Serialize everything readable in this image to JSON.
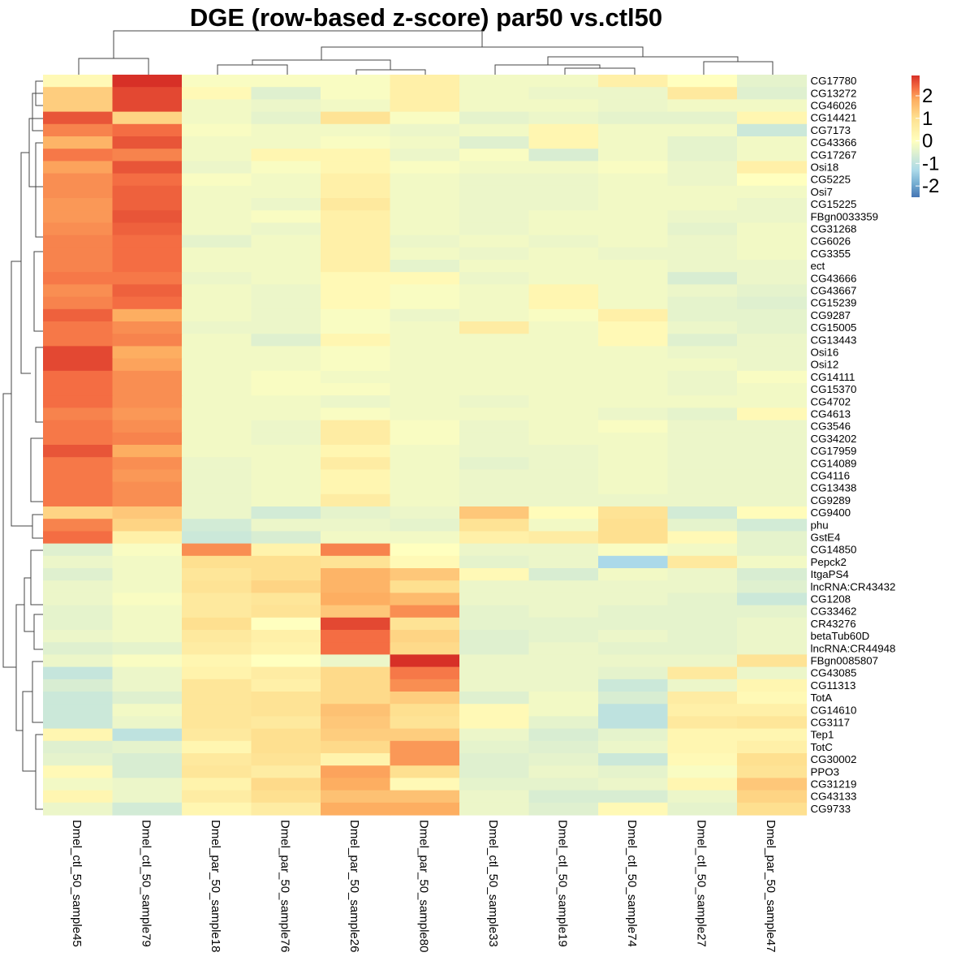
{
  "chart_data": {
    "type": "heatmap",
    "title": "DGE (row-based z-score) par50 vs.ctl50",
    "columns": [
      "Dmel_ctl_50_sample45",
      "Dmel_ctl_50_sample79",
      "Dmel_par_50_sample18",
      "Dmel_par_50_sample76",
      "Dmel_par_50_sample26",
      "Dmel_par_50_sample80",
      "Dmel_ctl_50_sample33",
      "Dmel_ctl_50_sample19",
      "Dmel_ctl_50_sample74",
      "Dmel_ctl_50_sample27",
      "Dmel_par_50_sample47"
    ],
    "rows": [
      "CG17780",
      "CG13272",
      "CG46026",
      "CG14421",
      "CG7173",
      "CG43366",
      "CG17267",
      "Osi18",
      "CG5225",
      "Osi7",
      "CG15225",
      "FBgn0033359",
      "CG31268",
      "CG6026",
      "CG3355",
      "ect",
      "CG43666",
      "CG43667",
      "CG15239",
      "CG9287",
      "CG15005",
      "CG13443",
      "Osi16",
      "Osi12",
      "CG14111",
      "CG15370",
      "CG4702",
      "CG4613",
      "CG3546",
      "CG34202",
      "CG17959",
      "CG14089",
      "CG4116",
      "CG13438",
      "CG9289",
      "CG9400",
      "phu",
      "GstE4",
      "CG14850",
      "Pepck2",
      "ItgaPS4",
      "lncRNA:CR43432",
      "CG1208",
      "CG33462",
      "CR43276",
      "betaTub60D",
      "lncRNA:CR44948",
      "FBgn0085807",
      "CG43085",
      "CG11313",
      "TotA",
      "CG14610",
      "CG3117",
      "Tep1",
      "TotC",
      "CG30002",
      "PPO3",
      "CG31219",
      "CG43133",
      "CG9733"
    ],
    "values": [
      [
        0.2,
        2.9,
        -0.1,
        -0.1,
        -0.1,
        0.5,
        -0.2,
        -0.2,
        0.5,
        0,
        -0.4
      ],
      [
        1.3,
        2.7,
        0.2,
        -0.5,
        -0.1,
        0.5,
        -0.2,
        -0.3,
        -0.3,
        0.7,
        -0.5
      ],
      [
        1.3,
        2.7,
        -0.2,
        -0.3,
        -0.2,
        0.5,
        -0.2,
        -0.2,
        -0.3,
        -0.2,
        -0.2
      ],
      [
        2.6,
        1.2,
        -0.2,
        -0.4,
        0.9,
        -0.1,
        -0.4,
        -0.3,
        -0.4,
        -0.4,
        0.3
      ],
      [
        2.2,
        2.4,
        -0.1,
        -0.2,
        -0.2,
        -0.3,
        -0.2,
        0.3,
        -0.2,
        -0.2,
        -0.8
      ],
      [
        1.7,
        2.6,
        -0.2,
        -0.2,
        -0.1,
        -0.2,
        -0.5,
        0.3,
        -0.2,
        -0.4,
        -0.2
      ],
      [
        2.3,
        2.2,
        -0.2,
        0.3,
        0.3,
        -0.3,
        -0.1,
        -0.6,
        -0.2,
        -0.4,
        -0.2
      ],
      [
        1.9,
        2.6,
        -0.3,
        -0.1,
        0.3,
        -0.1,
        -0.2,
        -0.2,
        -0.1,
        -0.3,
        0.5
      ],
      [
        2.1,
        2.4,
        -0.1,
        -0.2,
        0.5,
        -0.2,
        -0.3,
        -0.3,
        -0.2,
        -0.3,
        0
      ],
      [
        2.1,
        2.5,
        -0.2,
        -0.2,
        0.5,
        -0.2,
        -0.3,
        -0.3,
        -0.2,
        -0.2,
        -0.2
      ],
      [
        2.0,
        2.5,
        -0.2,
        -0.3,
        0.7,
        -0.2,
        -0.3,
        -0.3,
        -0.2,
        -0.2,
        -0.3
      ],
      [
        2.0,
        2.6,
        -0.2,
        -0.1,
        0.5,
        -0.2,
        -0.3,
        -0.2,
        -0.2,
        -0.3,
        -0.3
      ],
      [
        2.1,
        2.5,
        -0.2,
        -0.3,
        0.5,
        -0.2,
        -0.3,
        -0.2,
        -0.2,
        -0.4,
        -0.2
      ],
      [
        2.2,
        2.4,
        -0.4,
        -0.2,
        0.5,
        -0.3,
        -0.2,
        -0.3,
        -0.2,
        -0.3,
        -0.2
      ],
      [
        2.2,
        2.4,
        -0.2,
        -0.2,
        0.5,
        -0.2,
        -0.3,
        -0.2,
        -0.3,
        -0.3,
        -0.2
      ],
      [
        2.2,
        2.4,
        -0.2,
        -0.2,
        0.5,
        -0.4,
        -0.2,
        -0.2,
        -0.2,
        -0.3,
        -0.3
      ],
      [
        2.3,
        2.3,
        -0.3,
        -0.2,
        0.2,
        0.2,
        -0.3,
        -0.2,
        -0.2,
        -0.6,
        -0.3
      ],
      [
        2.1,
        2.5,
        -0.2,
        -0.3,
        0.2,
        -0.1,
        -0.2,
        0.3,
        -0.2,
        -0.3,
        -0.4
      ],
      [
        2.2,
        2.4,
        -0.2,
        -0.3,
        0.2,
        -0.1,
        -0.2,
        0.3,
        -0.2,
        -0.4,
        -0.5
      ],
      [
        2.5,
        1.8,
        -0.2,
        -0.3,
        -0.1,
        -0.3,
        -0.2,
        -0.1,
        0.5,
        -0.4,
        -0.4
      ],
      [
        2.3,
        2.1,
        -0.3,
        -0.3,
        -0.1,
        -0.2,
        0.6,
        -0.2,
        0.2,
        -0.3,
        -0.4
      ],
      [
        2.3,
        2.2,
        -0.2,
        -0.5,
        0.3,
        -0.2,
        -0.2,
        -0.2,
        0.2,
        -0.5,
        -0.3
      ],
      [
        2.7,
        1.8,
        -0.2,
        -0.2,
        -0.1,
        -0.2,
        -0.2,
        -0.2,
        -0.2,
        -0.3,
        -0.3
      ],
      [
        2.7,
        1.9,
        -0.2,
        -0.2,
        -0.1,
        -0.2,
        -0.2,
        -0.2,
        -0.2,
        -0.2,
        -0.3
      ],
      [
        2.4,
        2.1,
        -0.2,
        -0.1,
        -0.2,
        -0.2,
        -0.2,
        -0.2,
        -0.2,
        -0.3,
        -0.1
      ],
      [
        2.4,
        2.1,
        -0.2,
        -0.1,
        -0.1,
        -0.2,
        -0.2,
        -0.2,
        -0.2,
        -0.3,
        -0.2
      ],
      [
        2.4,
        2.1,
        -0.2,
        -0.2,
        -0.3,
        -0.2,
        -0.3,
        -0.2,
        -0.2,
        -0.2,
        -0.2
      ],
      [
        2.2,
        2.0,
        -0.2,
        -0.2,
        -0.1,
        -0.2,
        -0.2,
        -0.2,
        -0.3,
        -0.4,
        0.2
      ],
      [
        2.3,
        2.1,
        -0.2,
        -0.3,
        0.6,
        -0.1,
        -0.3,
        -0.2,
        -0.1,
        -0.3,
        -0.3
      ],
      [
        2.3,
        2.2,
        -0.2,
        -0.3,
        0.6,
        -0.1,
        -0.3,
        -0.2,
        -0.2,
        -0.3,
        -0.3
      ],
      [
        2.6,
        1.8,
        -0.2,
        -0.2,
        0.3,
        -0.2,
        -0.3,
        -0.3,
        -0.2,
        -0.3,
        -0.3
      ],
      [
        2.3,
        2.1,
        -0.3,
        -0.2,
        0.6,
        -0.2,
        -0.4,
        -0.3,
        -0.2,
        -0.3,
        -0.3
      ],
      [
        2.3,
        2.0,
        -0.3,
        -0.2,
        0.3,
        -0.2,
        -0.3,
        -0.3,
        -0.2,
        -0.3,
        -0.3
      ],
      [
        2.3,
        2.1,
        -0.3,
        -0.2,
        0.3,
        -0.2,
        -0.3,
        -0.3,
        -0.2,
        -0.3,
        -0.3
      ],
      [
        2.3,
        2.1,
        -0.3,
        -0.2,
        0.6,
        -0.2,
        -0.3,
        -0.3,
        -0.3,
        -0.3,
        -0.3
      ],
      [
        1.2,
        1.4,
        -0.3,
        -0.7,
        -0.4,
        -0.3,
        1.4,
        0.1,
        0.9,
        -0.7,
        0.1
      ],
      [
        2.2,
        1.2,
        -0.7,
        -0.3,
        -0.3,
        -0.4,
        0.9,
        -0.2,
        1.0,
        -0.4,
        -0.7
      ],
      [
        2.4,
        0.5,
        -0.8,
        -0.6,
        -0.2,
        -0.2,
        0.5,
        0.6,
        1.0,
        0.2,
        -0.4
      ],
      [
        -0.5,
        -0.1,
        2.1,
        0.4,
        2.2,
        0,
        -0.3,
        -0.3,
        -0.1,
        -0.2,
        -0.4
      ],
      [
        -0.3,
        -0.2,
        1.0,
        1.0,
        0.9,
        0.2,
        -0.4,
        -0.3,
        -1.3,
        0.7,
        -0.2
      ],
      [
        -0.5,
        -0.2,
        0.8,
        1.0,
        1.7,
        1.4,
        0.2,
        -0.6,
        -0.2,
        -0.3,
        -0.6
      ],
      [
        -0.3,
        -0.2,
        0.9,
        1.2,
        1.7,
        1.0,
        -0.3,
        -0.3,
        -0.3,
        -0.3,
        -0.5
      ],
      [
        -0.3,
        -0.1,
        0.7,
        0.8,
        1.8,
        1.6,
        -0.3,
        -0.3,
        -0.3,
        -0.4,
        -0.8
      ],
      [
        -0.4,
        -0.2,
        0.7,
        0.9,
        1.4,
        2.1,
        -0.4,
        -0.3,
        -0.4,
        -0.4,
        -0.4
      ],
      [
        -0.4,
        -0.2,
        1.0,
        0,
        2.7,
        0.9,
        -0.4,
        -0.4,
        -0.4,
        -0.4,
        -0.3
      ],
      [
        -0.3,
        -0.2,
        0.7,
        0.5,
        2.4,
        1.2,
        -0.5,
        -0.4,
        -0.3,
        -0.4,
        -0.3
      ],
      [
        -0.5,
        -0.4,
        0.6,
        0.4,
        2.4,
        1.1,
        -0.5,
        -0.3,
        -0.4,
        -0.4,
        -0.3
      ],
      [
        -0.3,
        -0.1,
        0.3,
        0,
        -0.3,
        2.9,
        -0.3,
        -0.3,
        -0.3,
        -0.3,
        0.9
      ],
      [
        -0.9,
        -0.3,
        0.4,
        0.6,
        1.1,
        2.3,
        -0.3,
        -0.3,
        -0.4,
        0.7,
        -0.3
      ],
      [
        -0.6,
        -0.3,
        0.8,
        0.5,
        1.1,
        2.1,
        -0.3,
        -0.3,
        -0.8,
        -0.3,
        0.3
      ],
      [
        -0.8,
        -0.5,
        0.8,
        0.9,
        1.1,
        1.3,
        -0.5,
        -0.2,
        -0.6,
        0.6,
        0.2
      ],
      [
        -0.8,
        -0.2,
        0.8,
        0.9,
        1.5,
        1.0,
        0.2,
        -0.2,
        -1.0,
        0.5,
        0.5
      ],
      [
        -0.8,
        -0.3,
        0.8,
        0.7,
        1.4,
        0.9,
        0.2,
        -0.4,
        -1.0,
        0.7,
        0.8
      ],
      [
        0.3,
        -1.0,
        0.7,
        1.0,
        1.3,
        1.3,
        -0.3,
        -0.6,
        -0.4,
        0.3,
        0.3
      ],
      [
        -0.5,
        -0.4,
        0.3,
        1.0,
        1.1,
        2.0,
        -0.4,
        -0.5,
        -0.3,
        0.3,
        0.5
      ],
      [
        -0.4,
        -0.6,
        0.7,
        0.9,
        0.4,
        2.0,
        -0.5,
        -0.4,
        -0.8,
        0.2,
        1.0
      ],
      [
        0.2,
        -0.6,
        0.8,
        0.6,
        1.9,
        1.0,
        -0.5,
        -0.3,
        -0.4,
        -0.1,
        0.9
      ],
      [
        -0.2,
        -0.3,
        0.4,
        1.1,
        1.8,
        0.2,
        -0.4,
        -0.4,
        -0.3,
        0.3,
        1.4
      ],
      [
        0.3,
        -0.3,
        0.6,
        1.0,
        1.5,
        1.5,
        -0.3,
        -0.6,
        -0.6,
        -0.3,
        1.2
      ],
      [
        -0.3,
        -0.7,
        0.3,
        0.6,
        1.8,
        1.8,
        -0.3,
        -0.5,
        0.2,
        -0.4,
        1.0
      ]
    ],
    "color_scale": {
      "min": -2.5,
      "max": 2.9,
      "low": "#4575B4",
      "mid": "#FFFFBF",
      "high": "#D73027"
    },
    "legend": {
      "ticks": [
        2,
        1,
        0,
        -1,
        -2
      ],
      "tick_labels": [
        "2",
        "1",
        "0",
        "-1",
        "-2"
      ],
      "position": "top-right"
    },
    "dendrograms": {
      "rows": true,
      "columns": true
    }
  }
}
